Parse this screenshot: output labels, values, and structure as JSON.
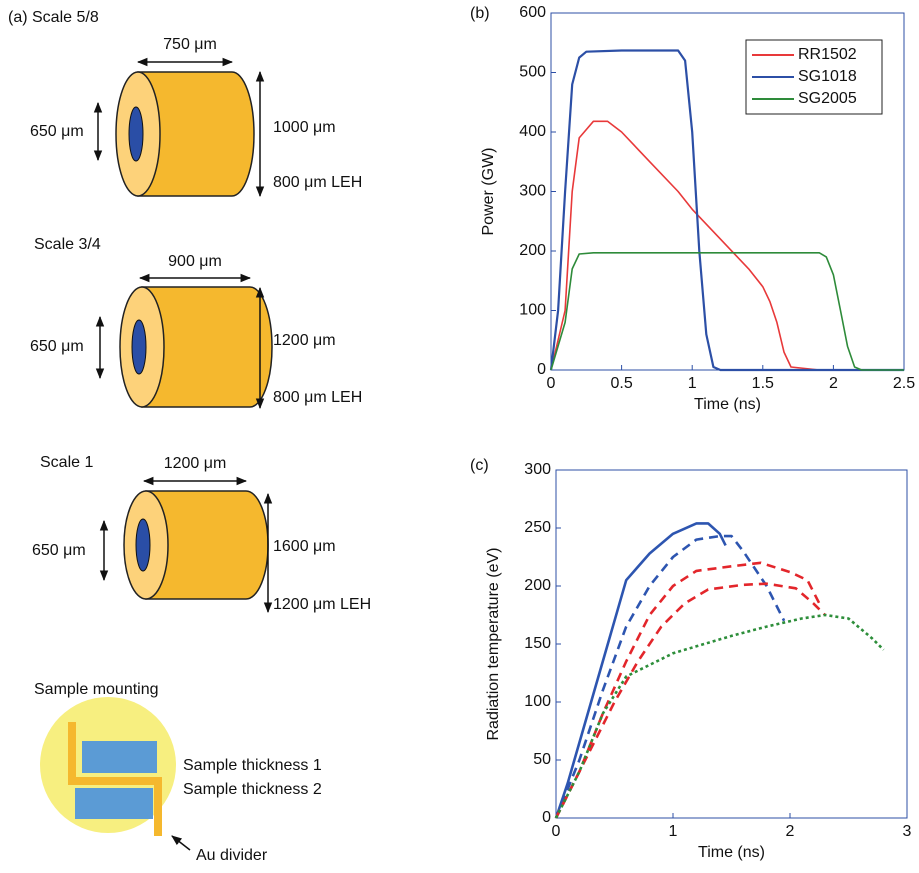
{
  "diagram": {
    "targets": [
      {
        "scale": "(a) Scale 5/8",
        "length": "750 μm",
        "leh_width": "650 μm",
        "diameter": "1000 μm",
        "leh": "800 μm LEH"
      },
      {
        "scale": "Scale 3/4",
        "length": "900 μm",
        "leh_width": "650 μm",
        "diameter": "1200 μm",
        "leh": "800 μm LEH"
      },
      {
        "scale": "Scale 1",
        "length": "1200 μm",
        "leh_width": "650 μm",
        "diameter": "1600 μm",
        "leh": "1200 μm LEH"
      }
    ],
    "mounting": {
      "title": "Sample mounting",
      "sample_1": "Sample thickness 1",
      "sample_2": "Sample thickness 2",
      "divider": "Au divider"
    }
  },
  "chart_data": [
    {
      "type": "line",
      "label": "(b)",
      "x_label": "Time (ns)",
      "y_label": "Power (GW)",
      "xlim": [
        0,
        2.5
      ],
      "xticks": [
        0,
        0.5,
        1,
        1.5,
        2,
        2.5
      ],
      "ylim": [
        0,
        600
      ],
      "yticks": [
        0,
        100,
        200,
        300,
        400,
        500,
        600
      ],
      "legend": "upper right",
      "series": [
        {
          "name": "RR1502",
          "color": "#e8393a",
          "style": "solid",
          "x": [
            0,
            0.1,
            0.15,
            0.2,
            0.3,
            0.4,
            0.5,
            0.7,
            0.9,
            1.0,
            1.2,
            1.4,
            1.5,
            1.55,
            1.6,
            1.65,
            1.7,
            1.9
          ],
          "values": [
            0,
            100,
            300,
            390,
            418,
            418,
            400,
            350,
            300,
            270,
            220,
            170,
            140,
            115,
            80,
            30,
            5,
            0
          ]
        },
        {
          "name": "SG1018",
          "color": "#2c4fa6",
          "style": "solid",
          "x": [
            0,
            0.05,
            0.1,
            0.15,
            0.2,
            0.25,
            0.5,
            0.9,
            0.95,
            1.0,
            1.05,
            1.1,
            1.15,
            1.2,
            2.5
          ],
          "values": [
            0,
            100,
            300,
            480,
            525,
            535,
            537,
            537,
            520,
            400,
            200,
            60,
            5,
            0,
            0
          ]
        },
        {
          "name": "SG2005",
          "color": "#2e8b3a",
          "style": "solid",
          "x": [
            0,
            0.1,
            0.15,
            0.2,
            0.3,
            1.9,
            1.95,
            2.0,
            2.05,
            2.1,
            2.15,
            2.2,
            2.5
          ],
          "values": [
            0,
            80,
            170,
            195,
            197,
            197,
            190,
            160,
            100,
            40,
            5,
            0,
            0
          ]
        }
      ]
    },
    {
      "type": "line",
      "label": "(c)",
      "x_label": "Time (ns)",
      "y_label": "Radiation temperature (eV)",
      "xlim": [
        0,
        3
      ],
      "xticks": [
        0,
        1,
        2,
        3
      ],
      "ylim": [
        0,
        300
      ],
      "yticks": [
        0,
        50,
        100,
        150,
        200,
        250,
        300
      ],
      "series": [
        {
          "color": "#2d55b0",
          "style": "solid",
          "x": [
            0,
            0.1,
            0.3,
            0.5,
            0.6,
            0.8,
            1.0,
            1.2,
            1.3,
            1.4,
            1.45
          ],
          "values": [
            0,
            30,
            100,
            170,
            205,
            228,
            245,
            254,
            254,
            245,
            235
          ]
        },
        {
          "color": "#2d55b0",
          "style": "dashed",
          "x": [
            0,
            0.2,
            0.4,
            0.6,
            0.8,
            1.0,
            1.2,
            1.4,
            1.5,
            1.6,
            1.8,
            1.95
          ],
          "values": [
            0,
            50,
            110,
            165,
            200,
            225,
            240,
            243,
            243,
            230,
            200,
            170
          ]
        },
        {
          "color": "#e3262b",
          "style": "dashed",
          "x": [
            0,
            0.2,
            0.4,
            0.6,
            0.8,
            1.0,
            1.2,
            1.5,
            1.75,
            2.0,
            2.15,
            2.25
          ],
          "values": [
            0,
            40,
            90,
            135,
            175,
            200,
            213,
            217,
            220,
            212,
            205,
            185
          ]
        },
        {
          "color": "#e3262b",
          "style": "dashed",
          "x": [
            0,
            0.3,
            0.5,
            0.7,
            0.9,
            1.1,
            1.3,
            1.6,
            1.8,
            2.05,
            2.2,
            2.3
          ],
          "values": [
            0,
            60,
            100,
            135,
            165,
            185,
            197,
            201,
            202,
            198,
            185,
            175
          ]
        },
        {
          "color": "#2d8e3a",
          "style": "dotted",
          "x": [
            0,
            0.2,
            0.4,
            0.6,
            0.8,
            1.0,
            1.2,
            1.5,
            1.8,
            2.1,
            2.3,
            2.5,
            2.7,
            2.8
          ],
          "values": [
            0,
            40,
            90,
            122,
            132,
            142,
            148,
            157,
            165,
            172,
            175,
            172,
            155,
            145
          ]
        }
      ]
    }
  ]
}
